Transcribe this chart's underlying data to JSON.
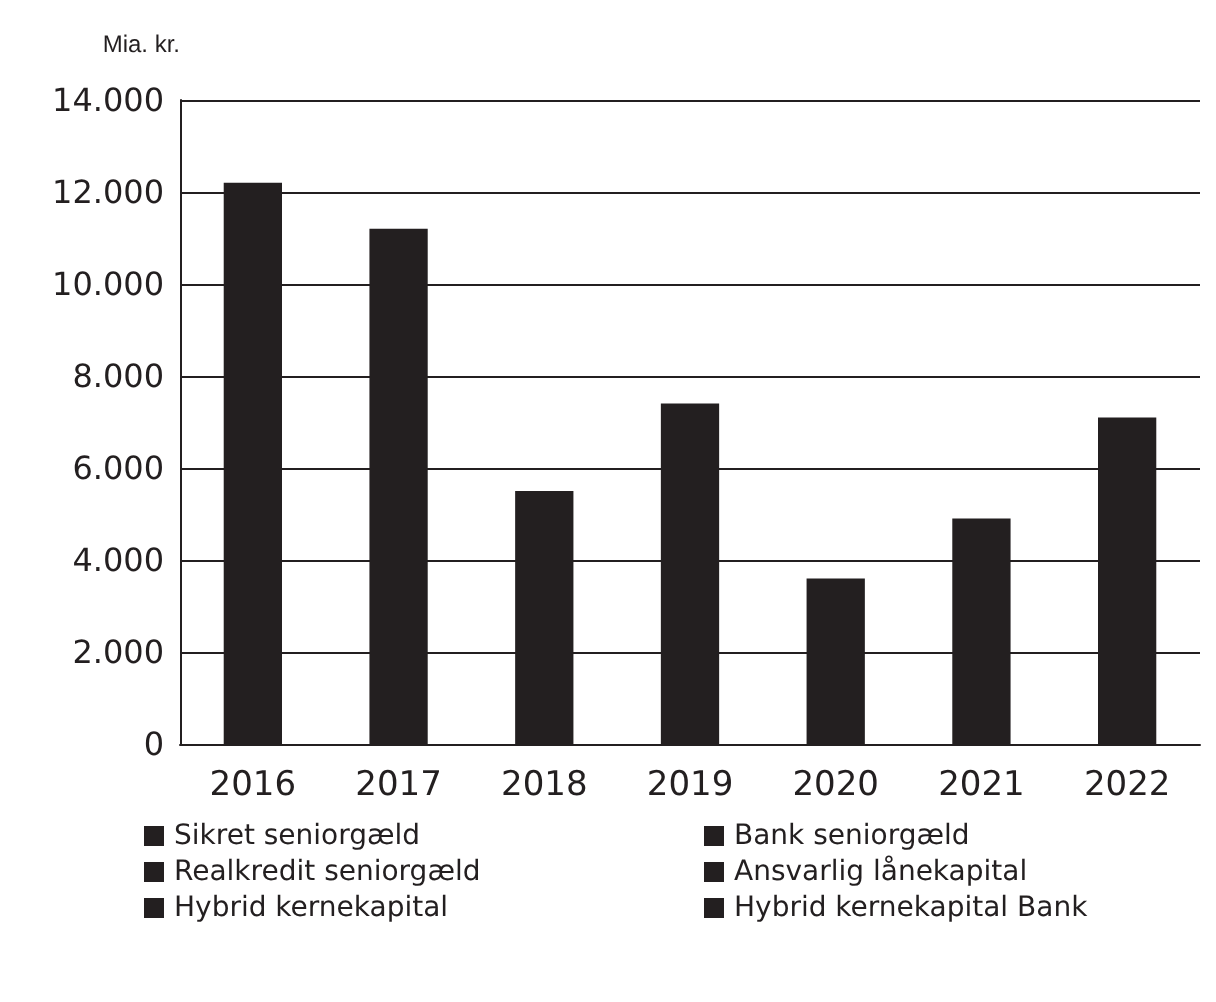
{
  "chart_data": {
    "type": "bar",
    "ylabel": "Mia. kr.",
    "categories": [
      "2016",
      "2017",
      "2018",
      "2019",
      "2020",
      "2021",
      "2022"
    ],
    "values": [
      12200,
      11200,
      5500,
      7400,
      3600,
      4900,
      7100
    ],
    "color": "#231f20",
    "ylim": [
      0,
      14000
    ],
    "yticks": [
      {
        "value": 0,
        "label": "0"
      },
      {
        "value": 2000,
        "label": "2.000"
      },
      {
        "value": 4000,
        "label": "4.000"
      },
      {
        "value": 6000,
        "label": "6.000"
      },
      {
        "value": 8000,
        "label": "8.000"
      },
      {
        "value": 10000,
        "label": "10.000"
      },
      {
        "value": 12000,
        "label": "12.000"
      },
      {
        "value": 14000,
        "label": "14.000"
      }
    ],
    "grid": "y",
    "annotations": [
      "Sikret seniorgæld",
      "Bank seniorgæld",
      "Realkredit seniorgæld",
      "Ansvarlig lånekapital",
      "Hybrid kernekapital",
      "Hybrid kernekapital Bank"
    ]
  }
}
